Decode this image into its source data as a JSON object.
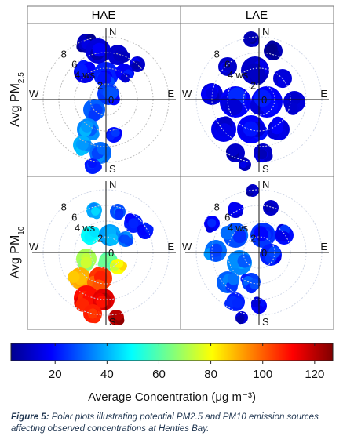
{
  "chart_data": {
    "type": "polar",
    "panels": [
      {
        "column": "HAE",
        "row": "PM2.5"
      },
      {
        "column": "LAE",
        "row": "PM2.5"
      },
      {
        "column": "HAE",
        "row": "PM10"
      },
      {
        "column": "LAE",
        "row": "PM10"
      }
    ],
    "column_titles": [
      "HAE",
      "LAE"
    ],
    "row_labels": [
      {
        "base": "Avg PM",
        "sub": "2.5"
      },
      {
        "base": "Avg PM",
        "sub": "10"
      }
    ],
    "compass": {
      "n": "N",
      "s": "S",
      "e": "E",
      "w": "W"
    },
    "radial_axis": {
      "unit": "ws",
      "ring_labels": [
        "2",
        "4",
        "6",
        "8"
      ],
      "values": [
        2,
        4,
        6,
        8
      ],
      "max": 10
    },
    "origin_label": "0",
    "colorbar": {
      "title": "Average Concentration (μg m⁻³)",
      "ticks": [
        "20",
        "40",
        "60",
        "80",
        "100",
        "120"
      ],
      "tick_values": [
        20,
        40,
        60,
        80,
        100,
        120
      ],
      "range": [
        3,
        127
      ],
      "colormap": "jet"
    }
  },
  "caption": {
    "lead": "Figure 5:",
    "text": " Polar plots illustrating potential PM2.5 and PM10 emission sources affecting observed concentrations at Henties Bay."
  }
}
